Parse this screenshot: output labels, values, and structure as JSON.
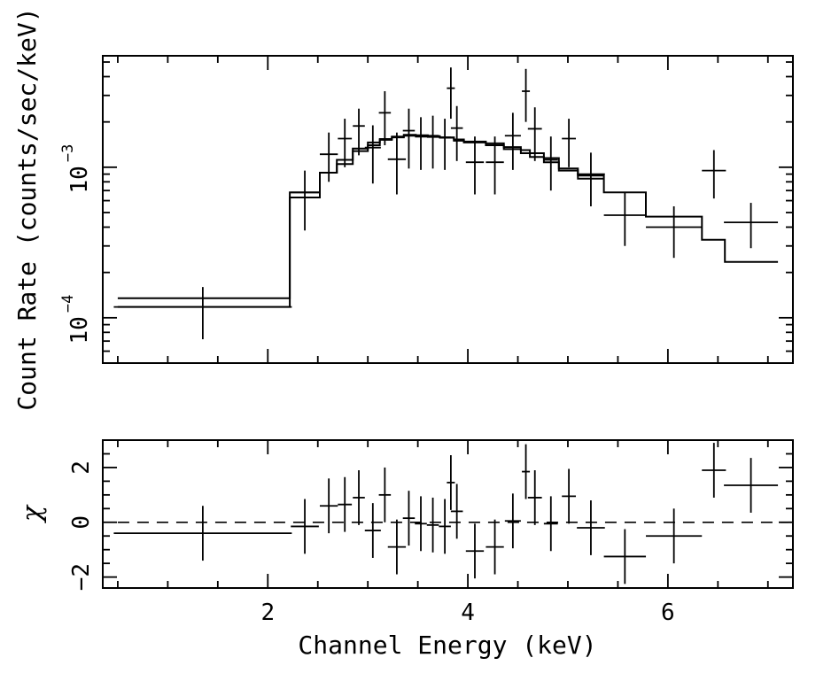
{
  "chart_data": [
    {
      "type": "scatter",
      "panel": "spectrum",
      "ylabel": "Count Rate (counts/sec/keV)",
      "yscale": "log",
      "xlim": [
        0.35,
        7.25
      ],
      "ylim": [
        5e-05,
        0.0055
      ],
      "yticks": [
        {
          "base": "10",
          "exp": "−4",
          "value": 0.0001
        },
        {
          "base": "10",
          "exp": "−3",
          "value": 0.001
        }
      ],
      "data": {
        "x": [
          1.35,
          2.37,
          2.61,
          2.77,
          2.91,
          3.05,
          3.17,
          3.29,
          3.41,
          3.53,
          3.65,
          3.77,
          3.83,
          3.89,
          4.07,
          4.27,
          4.45,
          4.58,
          4.67,
          4.83,
          5.01,
          5.23,
          5.57,
          6.06,
          6.46,
          6.83
        ],
        "y": [
          0.000118,
          0.00068,
          0.00122,
          0.00155,
          0.00188,
          0.00135,
          0.0023,
          0.00113,
          0.00175,
          0.00162,
          0.00162,
          0.00158,
          0.00335,
          0.00182,
          0.00108,
          0.00108,
          0.00162,
          0.0032,
          0.0018,
          0.00112,
          0.00155,
          0.0009,
          0.00048,
          0.0004,
          0.00095,
          0.00043
        ],
        "xerr": [
          0.89,
          0.14,
          0.09,
          0.07,
          0.06,
          0.08,
          0.06,
          0.09,
          0.06,
          0.06,
          0.06,
          0.06,
          0.04,
          0.06,
          0.09,
          0.09,
          0.08,
          0.04,
          0.07,
          0.07,
          0.07,
          0.14,
          0.21,
          0.28,
          0.12,
          0.27
        ],
        "ylo": [
          7.2e-05,
          0.00038,
          0.0008,
          0.001,
          0.0012,
          0.00078,
          0.0014,
          0.00066,
          0.00098,
          0.00096,
          0.00098,
          0.00096,
          0.0021,
          0.0011,
          0.00066,
          0.00066,
          0.00096,
          0.002,
          0.0011,
          0.0007,
          0.001,
          0.00055,
          0.0003,
          0.00025,
          0.00062,
          0.00029
        ],
        "yhi": [
          0.00016,
          0.00095,
          0.0017,
          0.0021,
          0.00245,
          0.0019,
          0.0032,
          0.0017,
          0.00245,
          0.00215,
          0.0022,
          0.0021,
          0.0046,
          0.00255,
          0.0016,
          0.0016,
          0.0023,
          0.0045,
          0.0025,
          0.0016,
          0.0021,
          0.00125,
          0.00068,
          0.00055,
          0.0013,
          0.00058
        ]
      },
      "model_a": {
        "x": [
          0.5,
          2.22,
          2.22,
          2.52,
          2.52,
          2.69,
          2.69,
          2.85,
          2.85,
          3.0,
          3.0,
          3.12,
          3.12,
          3.24,
          3.24,
          3.36,
          3.36,
          3.48,
          3.48,
          3.6,
          3.6,
          3.72,
          3.72,
          3.86,
          3.86,
          3.96,
          3.96,
          4.18,
          4.18,
          4.36,
          4.36,
          4.53,
          4.53,
          4.62,
          4.62,
          4.76,
          4.76,
          4.91,
          4.91,
          5.1,
          5.1,
          5.36,
          5.36,
          5.78,
          5.78,
          6.34,
          6.34,
          6.57,
          6.57,
          7.1
        ],
        "y": [
          0.000135,
          0.000135,
          0.00068,
          0.00068,
          0.00092,
          0.00092,
          0.00105,
          0.00105,
          0.00128,
          0.00128,
          0.0014,
          0.0014,
          0.00152,
          0.00152,
          0.00158,
          0.00158,
          0.00162,
          0.00162,
          0.0016,
          0.0016,
          0.00159,
          0.00159,
          0.00157,
          0.00157,
          0.0015,
          0.0015,
          0.00148,
          0.00148,
          0.00144,
          0.00144,
          0.00136,
          0.00136,
          0.0013,
          0.0013,
          0.00124,
          0.00124,
          0.00115,
          0.00115,
          0.00098,
          0.00098,
          0.00088,
          0.00088,
          0.00068,
          0.00068,
          0.00047,
          0.00047,
          0.00033,
          0.00033,
          0.000235,
          0.000235
        ]
      },
      "model_b": {
        "x": [
          0.5,
          2.22,
          2.22,
          2.52,
          2.52,
          2.69,
          2.69,
          2.85,
          2.85,
          3.0,
          3.0,
          3.12,
          3.12,
          3.24,
          3.24,
          3.36,
          3.36,
          3.48,
          3.48,
          3.6,
          3.6,
          3.72,
          3.72,
          3.86,
          3.86,
          3.96,
          3.96,
          4.18,
          4.18,
          4.36,
          4.36,
          4.53,
          4.53,
          4.62,
          4.62,
          4.76,
          4.76,
          4.91,
          4.91,
          5.1,
          5.1,
          5.36
        ],
        "y": [
          0.000118,
          0.000118,
          0.00063,
          0.00063,
          0.00092,
          0.00092,
          0.00112,
          0.00112,
          0.00133,
          0.00133,
          0.00146,
          0.00146,
          0.00154,
          0.00154,
          0.0016,
          0.0016,
          0.00164,
          0.00164,
          0.00163,
          0.00163,
          0.00161,
          0.00161,
          0.00158,
          0.00158,
          0.00153,
          0.00153,
          0.00146,
          0.00146,
          0.0014,
          0.0014,
          0.00132,
          0.00132,
          0.00124,
          0.00124,
          0.00117,
          0.00117,
          0.00108,
          0.00108,
          0.00095,
          0.00095,
          0.00084,
          0.00084
        ]
      }
    },
    {
      "type": "scatter",
      "panel": "residuals",
      "xlabel": "Channel Energy (keV)",
      "ylabel": "χ",
      "xlim": [
        0.35,
        7.25
      ],
      "ylim": [
        -2.4,
        3.0
      ],
      "xticks": [
        {
          "label": "2",
          "value": 2
        },
        {
          "label": "4",
          "value": 4
        },
        {
          "label": "6",
          "value": 6
        }
      ],
      "yticks": [
        {
          "label": "−2",
          "value": -2
        },
        {
          "label": "0",
          "value": 0
        },
        {
          "label": "2",
          "value": 2
        }
      ],
      "zero_line": 0,
      "data": {
        "x": [
          1.35,
          2.37,
          2.61,
          2.77,
          2.91,
          3.05,
          3.17,
          3.29,
          3.41,
          3.53,
          3.65,
          3.77,
          3.83,
          3.89,
          4.07,
          4.27,
          4.45,
          4.58,
          4.67,
          4.83,
          5.01,
          5.23,
          5.57,
          6.06,
          6.46,
          6.83
        ],
        "y": [
          -0.4,
          -0.15,
          0.6,
          0.65,
          0.9,
          -0.3,
          1.0,
          -0.9,
          0.15,
          -0.05,
          -0.1,
          -0.15,
          1.45,
          0.4,
          -1.05,
          -0.9,
          0.05,
          1.85,
          0.9,
          -0.05,
          0.95,
          -0.2,
          -1.25,
          -0.5,
          1.9,
          1.35
        ],
        "xerr": [
          0.89,
          0.14,
          0.09,
          0.07,
          0.06,
          0.08,
          0.06,
          0.09,
          0.06,
          0.06,
          0.06,
          0.06,
          0.04,
          0.06,
          0.09,
          0.09,
          0.08,
          0.04,
          0.07,
          0.07,
          0.07,
          0.14,
          0.21,
          0.28,
          0.12,
          0.27
        ],
        "yerr": [
          1.0,
          1.0,
          1.0,
          1.0,
          1.0,
          1.0,
          1.0,
          1.0,
          1.0,
          1.0,
          1.0,
          1.0,
          1.0,
          1.0,
          1.0,
          1.0,
          1.0,
          1.0,
          1.0,
          1.0,
          1.0,
          1.0,
          1.0,
          1.0,
          1.0,
          1.0
        ]
      }
    }
  ]
}
